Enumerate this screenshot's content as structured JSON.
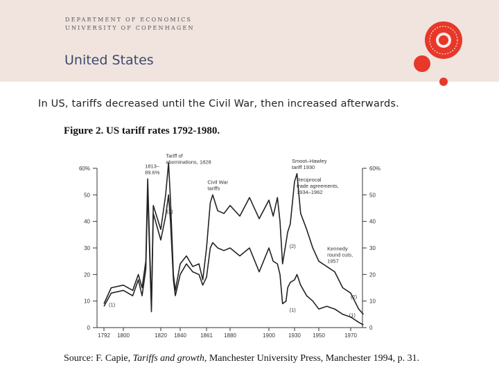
{
  "header": {
    "department": "DEPARTMENT OF ECONOMICS",
    "university": "UNIVERSITY OF COPENHAGEN",
    "slide_title": "United States"
  },
  "subtitle": "In US, tariffs decreased until the Civil War, then increased afterwards.",
  "colors": {
    "header_bg": "#f1e4df",
    "accent_red": "#e8382a",
    "title_blue": "#3a4a6b"
  },
  "chart_data": {
    "type": "line",
    "title": "Figure 2. US tariff rates 1792-1980.",
    "x_ticks": [
      "1792",
      "1800",
      "1820",
      "1840",
      "1861",
      "1880",
      "1900",
      "1930",
      "1950",
      "1970"
    ],
    "y_ticks_left": [
      "60%",
      "50",
      "40",
      "30",
      "20",
      "10",
      "0"
    ],
    "y_ticks_right": [
      "60%",
      "50",
      "40",
      "30",
      "20",
      "10",
      "0"
    ],
    "ylim": [
      0,
      60
    ],
    "series": [
      {
        "name": "(2)",
        "x": [
          1792,
          1795,
          1800,
          1805,
          1808,
          1810,
          1812,
          1813,
          1815,
          1816,
          1820,
          1825,
          1828,
          1830,
          1833,
          1835,
          1840,
          1845,
          1850,
          1855,
          1858,
          1861,
          1864,
          1866,
          1870,
          1875,
          1880,
          1885,
          1890,
          1895,
          1900,
          1905,
          1910,
          1913,
          1916,
          1920,
          1922,
          1925,
          1930,
          1932,
          1935,
          1940,
          1945,
          1950,
          1955,
          1960,
          1965,
          1970,
          1975,
          1978
        ],
        "values": [
          9,
          15,
          16,
          14,
          20,
          15,
          25,
          56,
          8,
          46,
          37,
          50,
          62,
          48,
          20,
          14,
          24,
          27,
          23,
          24,
          18,
          30,
          47,
          50,
          44,
          43,
          46,
          42,
          49,
          41,
          48,
          42,
          49,
          40,
          24,
          32,
          36,
          39,
          55,
          58,
          43,
          37,
          30,
          25,
          23,
          21,
          15,
          13,
          7,
          5
        ]
      },
      {
        "name": "(1)",
        "x": [
          1792,
          1795,
          1800,
          1805,
          1808,
          1810,
          1812,
          1813,
          1815,
          1816,
          1820,
          1825,
          1828,
          1830,
          1833,
          1835,
          1840,
          1845,
          1850,
          1855,
          1858,
          1861,
          1864,
          1866,
          1870,
          1875,
          1880,
          1885,
          1890,
          1895,
          1900,
          1905,
          1910,
          1913,
          1916,
          1920,
          1922,
          1925,
          1930,
          1932,
          1935,
          1940,
          1945,
          1950,
          1955,
          1960,
          1965,
          1970,
          1975,
          1978
        ],
        "values": [
          8,
          13,
          14,
          12,
          18,
          12,
          22,
          52,
          6,
          43,
          33,
          42,
          50,
          40,
          18,
          12,
          20,
          24,
          21,
          20,
          16,
          19,
          30,
          32,
          30,
          29,
          30,
          27,
          30,
          21,
          30,
          25,
          24,
          20,
          9,
          10,
          15,
          17,
          18,
          20,
          16,
          12,
          10,
          7,
          8,
          7,
          5,
          4,
          2,
          1
        ]
      }
    ],
    "annotations": [
      {
        "lines": [
          "1813–",
          "89.6%"
        ],
        "x": 1813,
        "y": 58
      },
      {
        "lines": [
          "Tariff of",
          "abominations, 1828"
        ],
        "x": 1828,
        "y": 62
      },
      {
        "lines": [
          "Civil War",
          "tariffs"
        ],
        "x": 1864,
        "y": 52
      },
      {
        "lines": [
          "Smoot–Hawley",
          "tariff 1930"
        ],
        "x": 1930,
        "y": 60
      },
      {
        "lines": [
          "Reciprocal",
          "trade agreements,",
          "1934–1962"
        ],
        "x": 1934,
        "y": 53
      },
      {
        "lines": [
          "Kennedy",
          "round cuts,",
          "1957"
        ],
        "x": 1957,
        "y": 27
      }
    ],
    "series_labels": [
      {
        "text": "(2)",
        "x": 1826,
        "y": 43
      },
      {
        "text": "(2)",
        "x": 1924,
        "y": 30
      },
      {
        "text": "(1)",
        "x": 1924,
        "y": 6
      },
      {
        "text": "(2)",
        "x": 1970,
        "y": 11
      },
      {
        "text": "(1)",
        "x": 1969,
        "y": 4
      },
      {
        "text": "(1)",
        "x": 1794,
        "y": 8
      }
    ]
  },
  "source": {
    "prefix": "Source: F. Capie, ",
    "book": "Tariffs and growth",
    "suffix": ", Manchester University Press, Manchester 1994, p. 31."
  }
}
